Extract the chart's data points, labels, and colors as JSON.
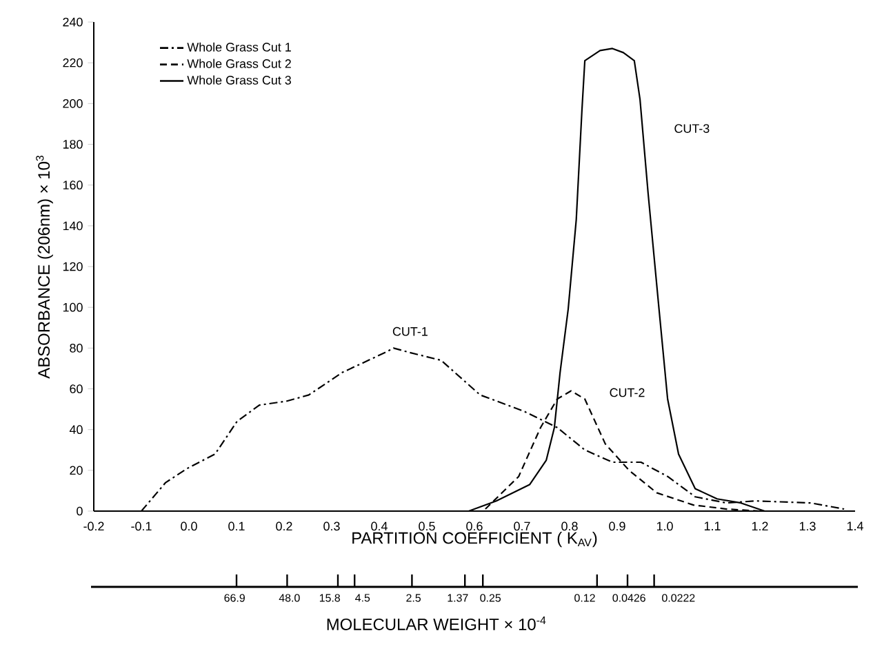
{
  "chart_data": [
    {
      "type": "line",
      "xlabel": "PARTITION COEFFICIENT ( K$_{AV}$)",
      "ylabel": "ABSORBANCE (206nm) × 10$^{3}$",
      "xlim": [
        -0.2,
        1.4
      ],
      "ylim": [
        0,
        240
      ],
      "xticks": [
        -0.2,
        -0.1,
        {
          "value": 0,
          "label": "0.0"
        },
        0.1,
        0.2,
        0.3,
        0.4,
        0.5,
        0.6,
        0.7,
        0.8,
        0.9,
        {
          "value": 1,
          "label": "1.0"
        },
        1.1,
        1.2,
        1.3,
        1.4
      ],
      "yticks": [
        0,
        20,
        40,
        60,
        80,
        100,
        120,
        140,
        160,
        180,
        200,
        220,
        240
      ],
      "legend": "top left",
      "series": [
        {
          "name": "Whole Grass Cut 1",
          "color": "#000000",
          "line_style": "dashdot",
          "x": [
            -0.1,
            -0.049,
            -0.003,
            0.055,
            0.101,
            0.148,
            0.206,
            0.252,
            0.322,
            0.414,
            0.43,
            0.461,
            0.53,
            0.612,
            0.704,
            0.774,
            0.832,
            0.89,
            0.95,
            1.006,
            1.064,
            1.13,
            1.191,
            1.307,
            1.377
          ],
          "values": [
            0,
            14,
            21,
            28,
            44,
            52,
            54,
            57,
            68,
            78,
            80,
            78,
            74,
            57,
            49,
            41,
            30,
            24,
            24,
            17,
            7,
            4,
            5,
            4,
            1
          ]
        },
        {
          "name": "Whole Grass Cut 2",
          "color": "#000000",
          "line_style": "dashed",
          "x": [
            0.623,
            0.693,
            0.739,
            0.774,
            0.803,
            0.832,
            0.875,
            0.925,
            0.983,
            1.06,
            1.13,
            1.2
          ],
          "values": [
            1,
            17,
            41,
            55,
            59,
            55,
            33,
            20,
            9,
            3,
            1,
            0
          ]
        },
        {
          "name": "Whole Grass Cut 3",
          "color": "#000000",
          "line_style": "solid",
          "x": [
            0.588,
            0.646,
            0.716,
            0.751,
            0.768,
            0.78,
            0.797,
            0.814,
            0.826,
            0.832,
            0.864,
            0.89,
            0.913,
            0.936,
            0.948,
            0.965,
            0.988,
            1.006,
            1.029,
            1.064,
            1.11,
            1.16,
            1.21
          ],
          "values": [
            0,
            5,
            13,
            25,
            41,
            68,
            99,
            143,
            197,
            221,
            226,
            227,
            225,
            221,
            202,
            156,
            99,
            55,
            28,
            11,
            6,
            4,
            0
          ]
        }
      ],
      "annotations": [
        "CUT-1",
        "CUT-2",
        "CUT-3"
      ]
    },
    {
      "type": "other",
      "xlabel": "MOLECULAR WEIGHT × 10$^{-4}$",
      "categories": [
        "66.9",
        "48.0",
        "15.8",
        "4.5",
        "2.5",
        "1.37",
        "0.25",
        "0.12",
        "0.0426",
        "0.0222"
      ]
    }
  ]
}
